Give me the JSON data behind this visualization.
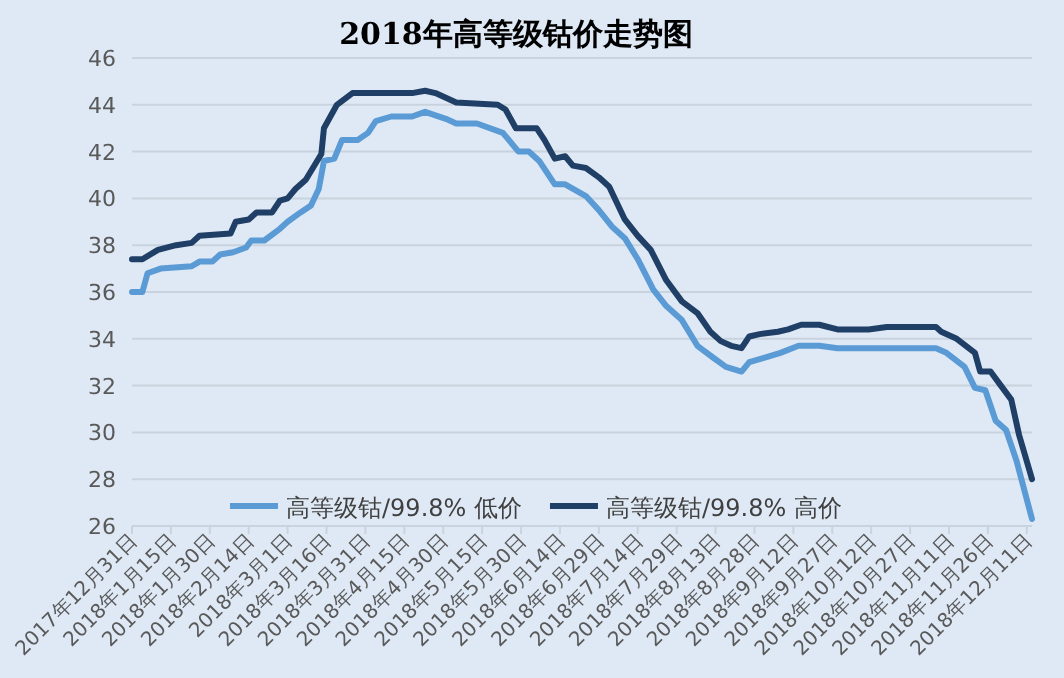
{
  "chart_data": {
    "type": "line",
    "title": "2018年高等级钴价走势图",
    "xlim": [
      "2017-12-31",
      "2018-12-13"
    ],
    "xticks": [
      {
        "value": "2017-12-31",
        "label": "2017年12月31日"
      },
      {
        "value": "2018-01-15",
        "label": "2018年1月15日"
      },
      {
        "value": "2018-01-30",
        "label": "2018年1月30日"
      },
      {
        "value": "2018-02-14",
        "label": "2018年2月14日"
      },
      {
        "value": "2018-03-01",
        "label": "2018年3月1日"
      },
      {
        "value": "2018-03-16",
        "label": "2018年3月16日"
      },
      {
        "value": "2018-03-31",
        "label": "2018年3月31日"
      },
      {
        "value": "2018-04-15",
        "label": "2018年4月15日"
      },
      {
        "value": "2018-04-30",
        "label": "2018年4月30日"
      },
      {
        "value": "2018-05-15",
        "label": "2018年5月15日"
      },
      {
        "value": "2018-05-30",
        "label": "2018年5月30日"
      },
      {
        "value": "2018-06-14",
        "label": "2018年6月14日"
      },
      {
        "value": "2018-06-29",
        "label": "2018年6月29日"
      },
      {
        "value": "2018-07-14",
        "label": "2018年7月14日"
      },
      {
        "value": "2018-07-29",
        "label": "2018年7月29日"
      },
      {
        "value": "2018-08-13",
        "label": "2018年8月13日"
      },
      {
        "value": "2018-08-28",
        "label": "2018年8月28日"
      },
      {
        "value": "2018-09-12",
        "label": "2018年9月12日"
      },
      {
        "value": "2018-09-27",
        "label": "2018年9月27日"
      },
      {
        "value": "2018-10-12",
        "label": "2018年10月12日"
      },
      {
        "value": "2018-10-27",
        "label": "2018年10月27日"
      },
      {
        "value": "2018-11-11",
        "label": "2018年11月11日"
      },
      {
        "value": "2018-11-26",
        "label": "2018年11月26日"
      },
      {
        "value": "2018-12-11",
        "label": "2018年12月11日"
      }
    ],
    "ylim": [
      26,
      46
    ],
    "yticks": [
      26,
      28,
      30,
      32,
      34,
      36,
      38,
      40,
      42,
      44,
      46
    ],
    "grid": "y",
    "legend": "bottom",
    "marker": "none",
    "line_style": "solid",
    "series": [
      {
        "name": "高等级钴/99.8% 低价",
        "color": "#5b9bd5",
        "x": [
          "2017-12-31",
          "2018-01-04",
          "2018-01-06",
          "2018-01-11",
          "2018-01-23",
          "2018-01-26",
          "2018-01-31",
          "2018-02-03",
          "2018-02-08",
          "2018-02-13",
          "2018-02-15",
          "2018-02-20",
          "2018-02-26",
          "2018-03-01",
          "2018-03-06",
          "2018-03-10",
          "2018-03-13",
          "2018-03-15",
          "2018-03-19",
          "2018-03-22",
          "2018-03-28",
          "2018-04-01",
          "2018-04-04",
          "2018-04-10",
          "2018-04-18",
          "2018-04-23",
          "2018-05-01",
          "2018-05-05",
          "2018-05-13",
          "2018-05-23",
          "2018-05-29",
          "2018-06-02",
          "2018-06-06",
          "2018-06-12",
          "2018-06-16",
          "2018-06-24",
          "2018-06-29",
          "2018-07-04",
          "2018-07-09",
          "2018-07-14",
          "2018-07-20",
          "2018-07-25",
          "2018-07-31",
          "2018-08-06",
          "2018-08-12",
          "2018-08-17",
          "2018-08-23",
          "2018-08-26",
          "2018-09-01",
          "2018-09-07",
          "2018-09-14",
          "2018-09-22",
          "2018-09-29",
          "2018-11-06",
          "2018-11-10",
          "2018-11-17",
          "2018-11-21",
          "2018-11-25",
          "2018-11-29",
          "2018-12-03",
          "2018-12-07",
          "2018-12-13"
        ],
        "values": [
          36.0,
          36.0,
          36.8,
          37.0,
          37.1,
          37.3,
          37.3,
          37.6,
          37.7,
          37.9,
          38.2,
          38.2,
          38.7,
          39.0,
          39.4,
          39.7,
          40.4,
          41.6,
          41.7,
          42.5,
          42.5,
          42.8,
          43.3,
          43.5,
          43.5,
          43.7,
          43.4,
          43.2,
          43.2,
          42.8,
          42.0,
          42.0,
          41.6,
          40.6,
          40.6,
          40.1,
          39.5,
          38.8,
          38.3,
          37.4,
          36.1,
          35.4,
          34.8,
          33.7,
          33.2,
          32.8,
          32.6,
          33.0,
          33.2,
          33.4,
          33.7,
          33.7,
          33.6,
          33.6,
          33.4,
          32.8,
          31.9,
          31.8,
          30.5,
          30.1,
          28.8,
          26.3
        ]
      },
      {
        "name": "高等级钴/99.8% 高价",
        "color": "#1f3f66",
        "x": [
          "2017-12-31",
          "2018-01-04",
          "2018-01-10",
          "2018-01-17",
          "2018-01-23",
          "2018-01-26",
          "2018-02-07",
          "2018-02-09",
          "2018-02-14",
          "2018-02-17",
          "2018-02-23",
          "2018-02-26",
          "2018-03-01",
          "2018-03-04",
          "2018-03-08",
          "2018-03-14",
          "2018-03-15",
          "2018-03-20",
          "2018-03-26",
          "2018-04-18",
          "2018-04-23",
          "2018-04-27",
          "2018-05-05",
          "2018-05-21",
          "2018-05-24",
          "2018-05-28",
          "2018-06-05",
          "2018-06-08",
          "2018-06-12",
          "2018-06-16",
          "2018-06-19",
          "2018-06-24",
          "2018-06-29",
          "2018-07-03",
          "2018-07-09",
          "2018-07-14",
          "2018-07-19",
          "2018-07-25",
          "2018-07-31",
          "2018-08-06",
          "2018-08-11",
          "2018-08-15",
          "2018-08-19",
          "2018-08-23",
          "2018-08-26",
          "2018-08-30",
          "2018-09-06",
          "2018-09-10",
          "2018-09-15",
          "2018-09-22",
          "2018-09-29",
          "2018-10-11",
          "2018-10-18",
          "2018-11-06",
          "2018-11-08",
          "2018-11-14",
          "2018-11-21",
          "2018-11-23",
          "2018-11-27",
          "2018-12-01",
          "2018-12-05",
          "2018-12-08",
          "2018-12-13"
        ],
        "values": [
          37.4,
          37.4,
          37.8,
          38.0,
          38.1,
          38.4,
          38.5,
          39.0,
          39.1,
          39.4,
          39.4,
          39.9,
          40.0,
          40.4,
          40.8,
          41.9,
          43.0,
          44.0,
          44.5,
          44.5,
          44.6,
          44.5,
          44.1,
          44.0,
          43.8,
          43.0,
          43.0,
          42.5,
          41.7,
          41.8,
          41.4,
          41.3,
          40.9,
          40.5,
          39.1,
          38.4,
          37.8,
          36.5,
          35.6,
          35.1,
          34.3,
          33.9,
          33.7,
          33.6,
          34.1,
          34.2,
          34.3,
          34.4,
          34.6,
          34.6,
          34.4,
          34.4,
          34.5,
          34.5,
          34.3,
          34.0,
          33.4,
          32.6,
          32.6,
          32.0,
          31.4,
          29.9,
          28.0
        ]
      }
    ]
  }
}
